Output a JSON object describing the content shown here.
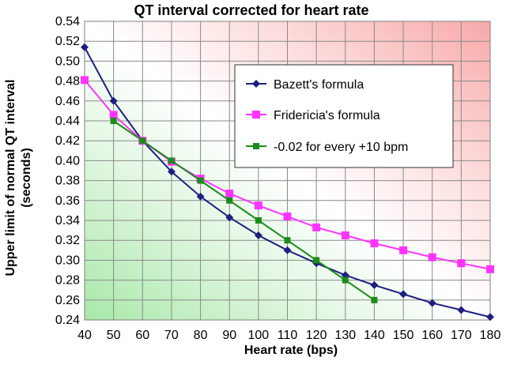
{
  "chart_data": {
    "type": "line",
    "title": "QT  interval corrected for heart rate",
    "xlabel": "Heart rate (bps)",
    "ylabel_line1": "Upper limit of normal QT interval",
    "ylabel_line2": "(seconds)",
    "xlim": [
      40,
      180
    ],
    "ylim": [
      0.24,
      0.54
    ],
    "x_ticks": [
      40,
      50,
      60,
      70,
      80,
      90,
      100,
      110,
      120,
      130,
      140,
      150,
      160,
      170,
      180
    ],
    "y_ticks": [
      0.24,
      0.26,
      0.28,
      0.3,
      0.32,
      0.34,
      0.36,
      0.38,
      0.4,
      0.42,
      0.44,
      0.46,
      0.48,
      0.5,
      0.52,
      0.54
    ],
    "y_tick_labels": [
      "0.24",
      "0.26",
      "0.28",
      "0.30",
      "0.32",
      "0.34",
      "0.36",
      "0.38",
      "0.40",
      "0.42",
      "0.44",
      "0.46",
      "0.48",
      "0.50",
      "0.52",
      "0.54"
    ],
    "grid": true,
    "legend_position": "upper-right",
    "background": "gradient red (upper) to green (lower)",
    "series": [
      {
        "name": "Bazett's formula",
        "color": "#1f1f80",
        "marker": "diamond",
        "x": [
          40,
          50,
          60,
          70,
          80,
          90,
          100,
          110,
          120,
          130,
          140,
          150,
          160,
          170,
          180
        ],
        "values": [
          0.514,
          0.46,
          0.42,
          0.389,
          0.364,
          0.343,
          0.325,
          0.31,
          0.297,
          0.285,
          0.275,
          0.266,
          0.257,
          0.25,
          0.243
        ]
      },
      {
        "name": "Fridericia's formula",
        "color": "#ff33ff",
        "marker": "square",
        "x": [
          40,
          50,
          60,
          70,
          80,
          90,
          100,
          110,
          120,
          130,
          140,
          150,
          160,
          170,
          180
        ],
        "values": [
          0.481,
          0.446,
          0.42,
          0.399,
          0.382,
          0.367,
          0.355,
          0.344,
          0.333,
          0.325,
          0.317,
          0.31,
          0.303,
          0.297,
          0.291
        ]
      },
      {
        "name": "-0.02 for every +10 bpm",
        "color": "#1a8c1a",
        "marker": "square-small",
        "x": [
          50,
          60,
          70,
          80,
          90,
          100,
          110,
          120,
          130,
          140
        ],
        "values": [
          0.44,
          0.42,
          0.4,
          0.38,
          0.36,
          0.34,
          0.32,
          0.3,
          0.28,
          0.26
        ]
      }
    ]
  }
}
